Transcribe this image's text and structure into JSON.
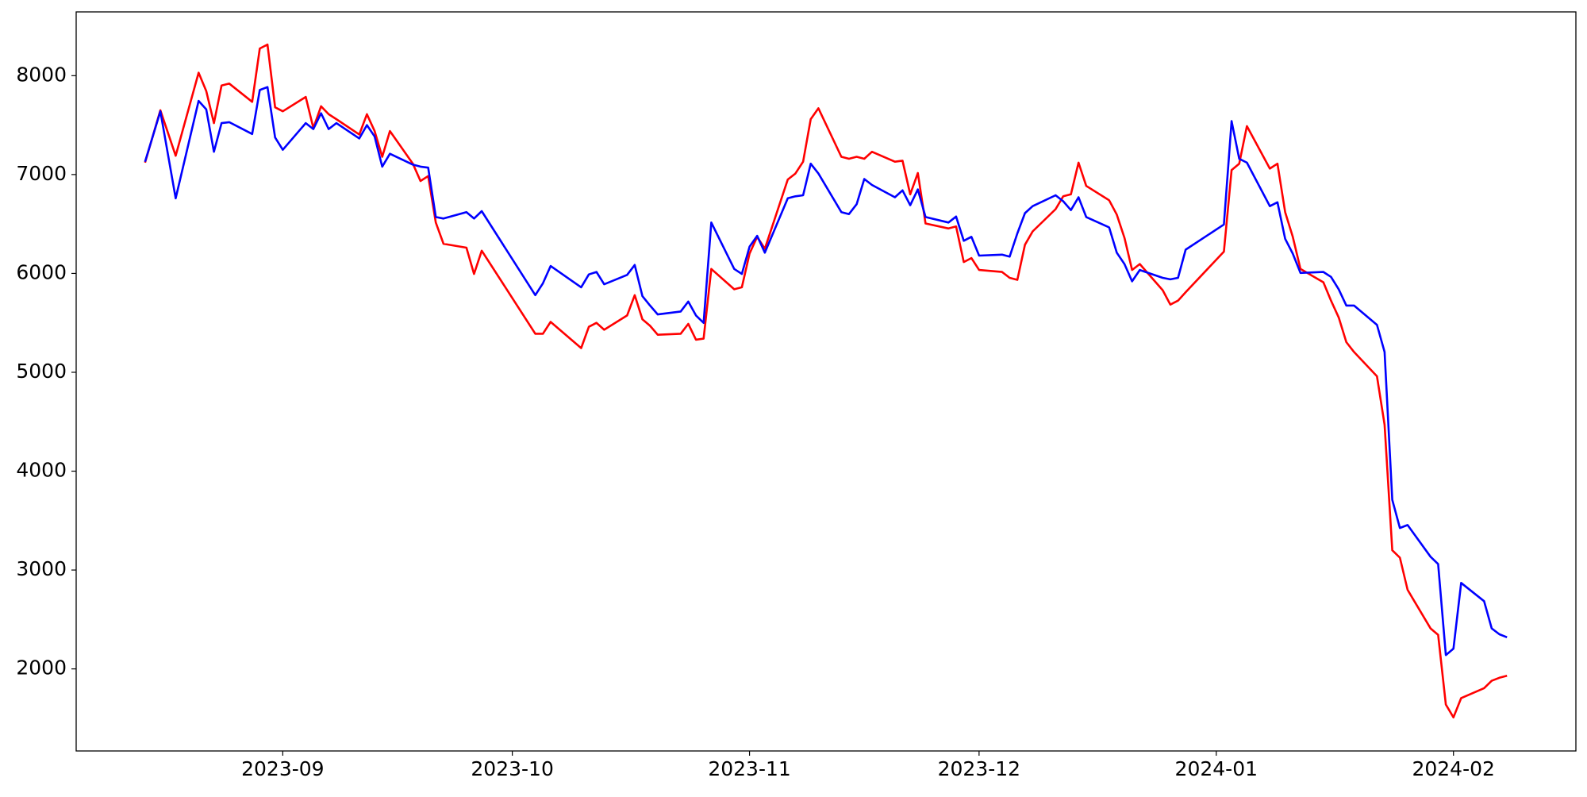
{
  "chart_data": {
    "type": "line",
    "x": [
      "2023-08-14",
      "2023-08-16",
      "2023-08-18",
      "2023-08-21",
      "2023-08-22",
      "2023-08-23",
      "2023-08-24",
      "2023-08-25",
      "2023-08-28",
      "2023-08-29",
      "2023-08-30",
      "2023-08-31",
      "2023-09-01",
      "2023-09-04",
      "2023-09-05",
      "2023-09-06",
      "2023-09-07",
      "2023-09-08",
      "2023-09-11",
      "2023-09-12",
      "2023-09-13",
      "2023-09-14",
      "2023-09-15",
      "2023-09-18",
      "2023-09-19",
      "2023-09-20",
      "2023-09-21",
      "2023-09-22",
      "2023-09-25",
      "2023-09-26",
      "2023-09-27",
      "2023-10-04",
      "2023-10-05",
      "2023-10-06",
      "2023-10-10",
      "2023-10-11",
      "2023-10-12",
      "2023-10-13",
      "2023-10-16",
      "2023-10-17",
      "2023-10-18",
      "2023-10-19",
      "2023-10-20",
      "2023-10-23",
      "2023-10-24",
      "2023-10-25",
      "2023-10-26",
      "2023-10-27",
      "2023-10-30",
      "2023-10-31",
      "2023-11-01",
      "2023-11-02",
      "2023-11-03",
      "2023-11-06",
      "2023-11-07",
      "2023-11-08",
      "2023-11-09",
      "2023-11-10",
      "2023-11-13",
      "2023-11-14",
      "2023-11-15",
      "2023-11-16",
      "2023-11-17",
      "2023-11-20",
      "2023-11-21",
      "2023-11-22",
      "2023-11-23",
      "2023-11-24",
      "2023-11-27",
      "2023-11-28",
      "2023-11-29",
      "2023-11-30",
      "2023-12-01",
      "2023-12-04",
      "2023-12-05",
      "2023-12-06",
      "2023-12-07",
      "2023-12-08",
      "2023-12-11",
      "2023-12-12",
      "2023-12-13",
      "2023-12-14",
      "2023-12-15",
      "2023-12-18",
      "2023-12-19",
      "2023-12-20",
      "2023-12-21",
      "2023-12-22",
      "2023-12-25",
      "2023-12-26",
      "2023-12-27",
      "2023-12-28",
      "2024-01-02",
      "2024-01-03",
      "2024-01-04",
      "2024-01-05",
      "2024-01-08",
      "2024-01-09",
      "2024-01-10",
      "2024-01-11",
      "2024-01-12",
      "2024-01-15",
      "2024-01-16",
      "2024-01-17",
      "2024-01-18",
      "2024-01-19",
      "2024-01-22",
      "2024-01-23",
      "2024-01-24",
      "2024-01-25",
      "2024-01-26",
      "2024-01-29",
      "2024-01-30",
      "2024-01-31",
      "2024-02-01",
      "2024-02-02",
      "2024-02-05",
      "2024-02-06",
      "2024-02-07",
      "2024-02-08"
    ],
    "series": [
      {
        "color": "#ff0000",
        "values": [
          7120,
          7650,
          7190,
          8030,
          7845,
          7520,
          7900,
          7920,
          7735,
          8275,
          8315,
          7680,
          7640,
          7785,
          7470,
          7690,
          7610,
          7560,
          7405,
          7610,
          7440,
          7180,
          7440,
          7110,
          6935,
          6985,
          6515,
          6300,
          6260,
          5995,
          6230,
          5390,
          5390,
          5510,
          5245,
          5460,
          5500,
          5430,
          5575,
          5780,
          5535,
          5470,
          5380,
          5390,
          5490,
          5330,
          5340,
          6045,
          5840,
          5860,
          6200,
          6370,
          6250,
          6950,
          7010,
          7130,
          7560,
          7670,
          7180,
          7160,
          7180,
          7160,
          7230,
          7130,
          7140,
          6800,
          7015,
          6505,
          6455,
          6475,
          6115,
          6155,
          6035,
          6015,
          5955,
          5935,
          6290,
          6425,
          6650,
          6780,
          6800,
          7120,
          6885,
          6740,
          6595,
          6360,
          6035,
          6095,
          5830,
          5685,
          5725,
          5810,
          6220,
          7045,
          7110,
          7490,
          7060,
          7110,
          6620,
          6370,
          6045,
          5910,
          5725,
          5555,
          5305,
          5205,
          4960,
          4470,
          3200,
          3125,
          2800,
          2410,
          2345,
          1640,
          1510,
          1705,
          1805,
          1880,
          1910,
          1930
        ]
      },
      {
        "color": "#0000ff",
        "values": [
          7130,
          7640,
          6760,
          7745,
          7660,
          7230,
          7520,
          7530,
          7410,
          7855,
          7885,
          7375,
          7250,
          7520,
          7460,
          7620,
          7460,
          7520,
          7365,
          7500,
          7385,
          7080,
          7210,
          7100,
          7080,
          7070,
          6570,
          6555,
          6620,
          6555,
          6630,
          5780,
          5900,
          6075,
          5860,
          5990,
          6015,
          5890,
          5985,
          6085,
          5770,
          5675,
          5585,
          5615,
          5715,
          5575,
          5500,
          6515,
          6045,
          5995,
          6270,
          6380,
          6210,
          6760,
          6780,
          6790,
          7110,
          7010,
          6620,
          6600,
          6700,
          6955,
          6895,
          6770,
          6840,
          6690,
          6850,
          6570,
          6515,
          6575,
          6330,
          6370,
          6180,
          6190,
          6170,
          6405,
          6610,
          6680,
          6790,
          6730,
          6640,
          6770,
          6570,
          6465,
          6210,
          6095,
          5920,
          6035,
          5955,
          5940,
          5955,
          6240,
          6495,
          7540,
          7160,
          7120,
          6680,
          6720,
          6350,
          6200,
          6005,
          6015,
          5965,
          5840,
          5675,
          5675,
          5480,
          5205,
          3710,
          3425,
          3455,
          3135,
          3060,
          2140,
          2205,
          2870,
          2685,
          2410,
          2350,
          2320
        ]
      }
    ],
    "xlim": [
      "2023-08-05",
      "2024-02-17"
    ],
    "xticks": [
      {
        "value": "2023-09-01",
        "label": "2023-09"
      },
      {
        "value": "2023-10-01",
        "label": "2023-10"
      },
      {
        "value": "2023-11-01",
        "label": "2023-11"
      },
      {
        "value": "2023-12-01",
        "label": "2023-12"
      },
      {
        "value": "2024-01-01",
        "label": "2024-01"
      },
      {
        "value": "2024-02-01",
        "label": "2024-02"
      }
    ],
    "ylim": [
      1170,
      8645
    ],
    "yticks": [
      2000,
      3000,
      4000,
      5000,
      6000,
      7000,
      8000
    ],
    "grid": false
  }
}
